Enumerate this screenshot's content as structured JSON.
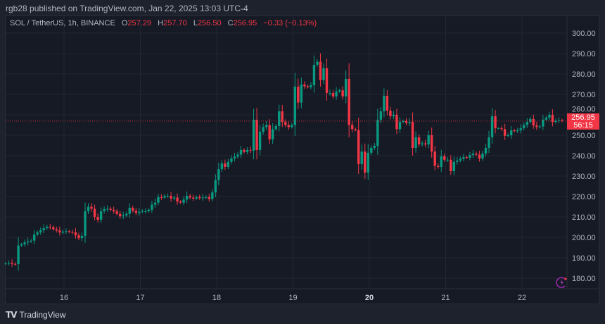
{
  "publish_line": "rgb28 published on TradingView.com, Jan 22, 2025 13:03 UTC-4",
  "legend": {
    "symbol": "SOL / TetherUS, 1h, BINANCE",
    "o_label": "O",
    "o": "257.29",
    "h_label": "H",
    "h": "257.70",
    "l_label": "L",
    "l": "256.50",
    "c_label": "C",
    "c": "256.95",
    "change": "−0.33 (−0.13%)"
  },
  "price_label": {
    "price": "256.95",
    "countdown": "56:15"
  },
  "footer": {
    "brand": "TradingView",
    "logo_text": "TV"
  },
  "icons": {
    "alert": "lightning-bolt-icon"
  },
  "colors": {
    "up": "#089981",
    "down": "#f23645",
    "background": "#161a25",
    "grid": "#232733"
  },
  "chart_data": {
    "type": "candlestick",
    "interval": "1h",
    "first_candle": "Jan 15 06:00",
    "last_candle": "Jan 22 13:00",
    "x_ticks": [
      "16",
      "17",
      "18",
      "19",
      "20",
      "21",
      "22"
    ],
    "y_ticks": [
      "180.00",
      "190.00",
      "200.00",
      "210.00",
      "220.00",
      "230.00",
      "240.00",
      "250.00",
      "260.00",
      "270.00",
      "280.00",
      "290.00",
      "300.00"
    ],
    "ylim": [
      175,
      304
    ],
    "grid": true,
    "last_price": 256.95,
    "closes": [
      187.2,
      187.5,
      187,
      186.9,
      196,
      196.6,
      197.5,
      198,
      198.4,
      201.4,
      202.4,
      203.5,
      204.5,
      205.2,
      205,
      204,
      203.4,
      202.4,
      202.8,
      203,
      202.6,
      202.5,
      201,
      199.6,
      200.7,
      212.8,
      215,
      214,
      210,
      208.6,
      212.8,
      213.8,
      214,
      213.5,
      212.8,
      211.5,
      210.3,
      210.8,
      211.5,
      214.5,
      213,
      212,
      212.5,
      212.8,
      212.8,
      213.5,
      216,
      217,
      219.7,
      219.5,
      220.3,
      220.3,
      219,
      219.5,
      217.5,
      217,
      218.5,
      220.3,
      219.5,
      219,
      219.7,
      219.3,
      219.5,
      219.7,
      218.8,
      222,
      228,
      233.4,
      236.2,
      234.5,
      237,
      238.6,
      239.5,
      240.5,
      242.8,
      241.8,
      242.8,
      242.5,
      257.6,
      242.8,
      251.7,
      254,
      255,
      248,
      253,
      254.5,
      261.7,
      256.5,
      255,
      254,
      255,
      273.8,
      266,
      274.8,
      274,
      273.5,
      274.5,
      284.5,
      286,
      277,
      282.8,
      270.7,
      270.7,
      269,
      271.4,
      272,
      269,
      277.6,
      255,
      253,
      252.5,
      235.9,
      242,
      231.7,
      241.4,
      243.8,
      244.8,
      257.6,
      261.7,
      269.3,
      262,
      259.3,
      260,
      253,
      256.5,
      257,
      256,
      256.5,
      243.8,
      249,
      245.5,
      246,
      245.5,
      250,
      242,
      235,
      234.5,
      239.7,
      238,
      238,
      232.4,
      237,
      237.6,
      238.5,
      239.3,
      239,
      240.3,
      241,
      240.5,
      238.6,
      241,
      243.8,
      249,
      259.3,
      253.4,
      253.4,
      253,
      249.7,
      250,
      252.4,
      252,
      252.4,
      253.4,
      255,
      256.5,
      258,
      254.8,
      254,
      254.3,
      257.6,
      258.6,
      260,
      256.5,
      257,
      257.3,
      256.95
    ],
    "first_open": 187.0
  }
}
